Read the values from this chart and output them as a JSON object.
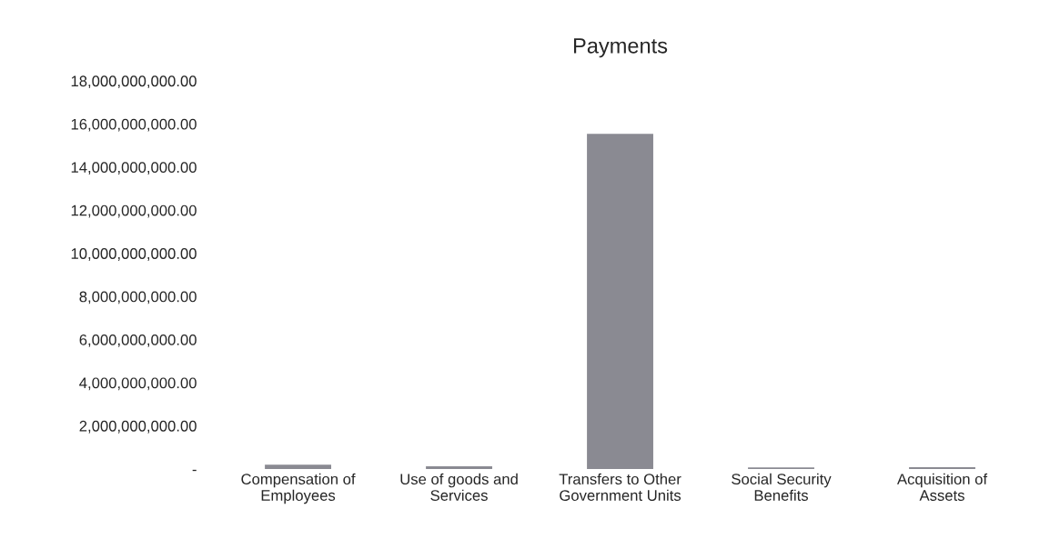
{
  "chart_data": {
    "type": "bar",
    "title": "Payments",
    "categories": [
      "Compensation of\nEmployees",
      "Use of goods and\nServices",
      "Transfers to Other\nGovernment Units",
      "Social Security\nBenefits",
      "Acquisition of\nAssets"
    ],
    "values": [
      150000000,
      80000000,
      15500000000,
      30000000,
      40000000
    ],
    "color": "#8a8a92",
    "ylim": [
      0,
      18000000000
    ],
    "yticks": [
      {
        "value": 0,
        "label": "-"
      },
      {
        "value": 2000000000,
        "label": "2,000,000,000.00"
      },
      {
        "value": 4000000000,
        "label": "4,000,000,000.00"
      },
      {
        "value": 6000000000,
        "label": "6,000,000,000.00"
      },
      {
        "value": 8000000000,
        "label": "8,000,000,000.00"
      },
      {
        "value": 10000000000,
        "label": "10,000,000,000.00"
      },
      {
        "value": 12000000000,
        "label": "12,000,000,000.00"
      },
      {
        "value": 14000000000,
        "label": "14,000,000,000.00"
      },
      {
        "value": 16000000000,
        "label": "16,000,000,000.00"
      },
      {
        "value": 18000000000,
        "label": "18,000,000,000.00"
      }
    ],
    "grid": false,
    "legend": false
  }
}
